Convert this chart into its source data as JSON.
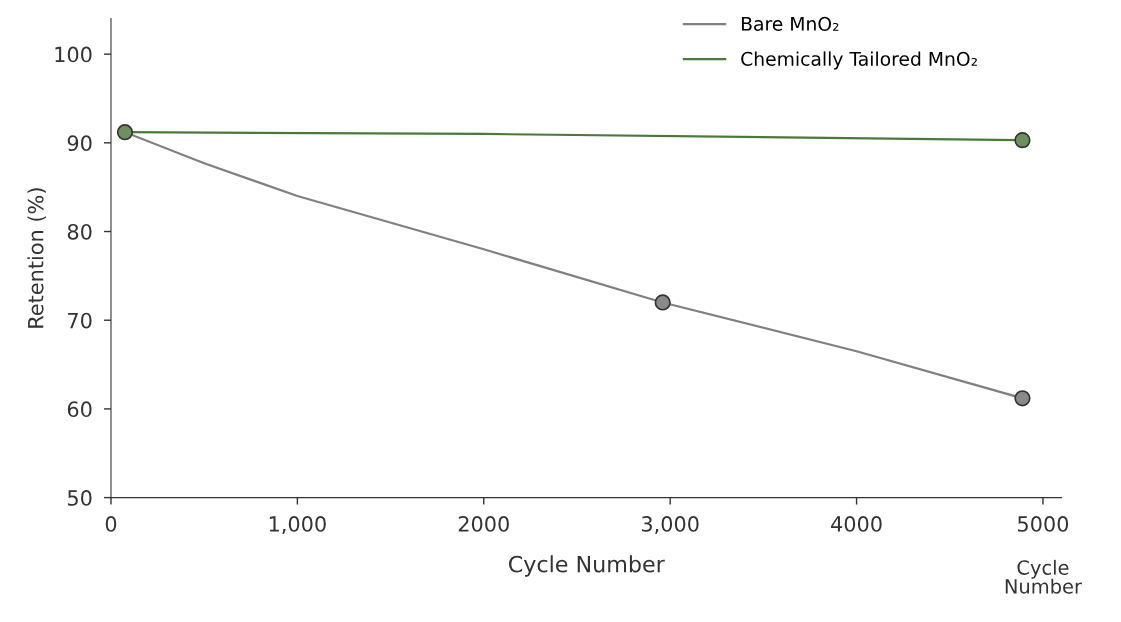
{
  "chart_data": {
    "type": "line",
    "xlabel": "Cycle Number",
    "ylabel": "Retention (%)",
    "annotations": [
      "Cycle\nNumber"
    ],
    "series": [
      {
        "name": "Bare MnO₂",
        "color": "#808080",
        "marker": "none",
        "x": [
          75,
          500,
          1000,
          2000,
          2960,
          4000,
          4890
        ],
        "values": [
          91.2,
          87.7,
          84.0,
          78.0,
          72.0,
          66.5,
          61.2
        ]
      },
      {
        "name": "Chemically Tailored MnO₂",
        "color": "#4a7a3a",
        "marker": "none",
        "x": [
          75,
          2000,
          4890
        ],
        "values": [
          91.2,
          91.0,
          90.3
        ]
      },
      {
        "type": "scatter",
        "color": "#8a8a8a",
        "marker": "circle",
        "x": [
          2960,
          4890
        ],
        "values": [
          72.0,
          61.2
        ]
      },
      {
        "type": "scatter",
        "color": "#6f8f5e",
        "marker": "circle",
        "x": [
          75,
          4890
        ],
        "values": [
          91.2,
          90.3
        ]
      }
    ],
    "xlim": [
      0,
      5100
    ],
    "ylim": [
      50,
      104
    ],
    "xticks": [
      0,
      {
        "value": 1000,
        "label": "1,000"
      },
      2000,
      {
        "value": 3000,
        "label": "3,000"
      },
      4000,
      5000
    ],
    "yticks": [
      50,
      60,
      70,
      80,
      90,
      100
    ],
    "grid": false,
    "legend": "top right"
  }
}
